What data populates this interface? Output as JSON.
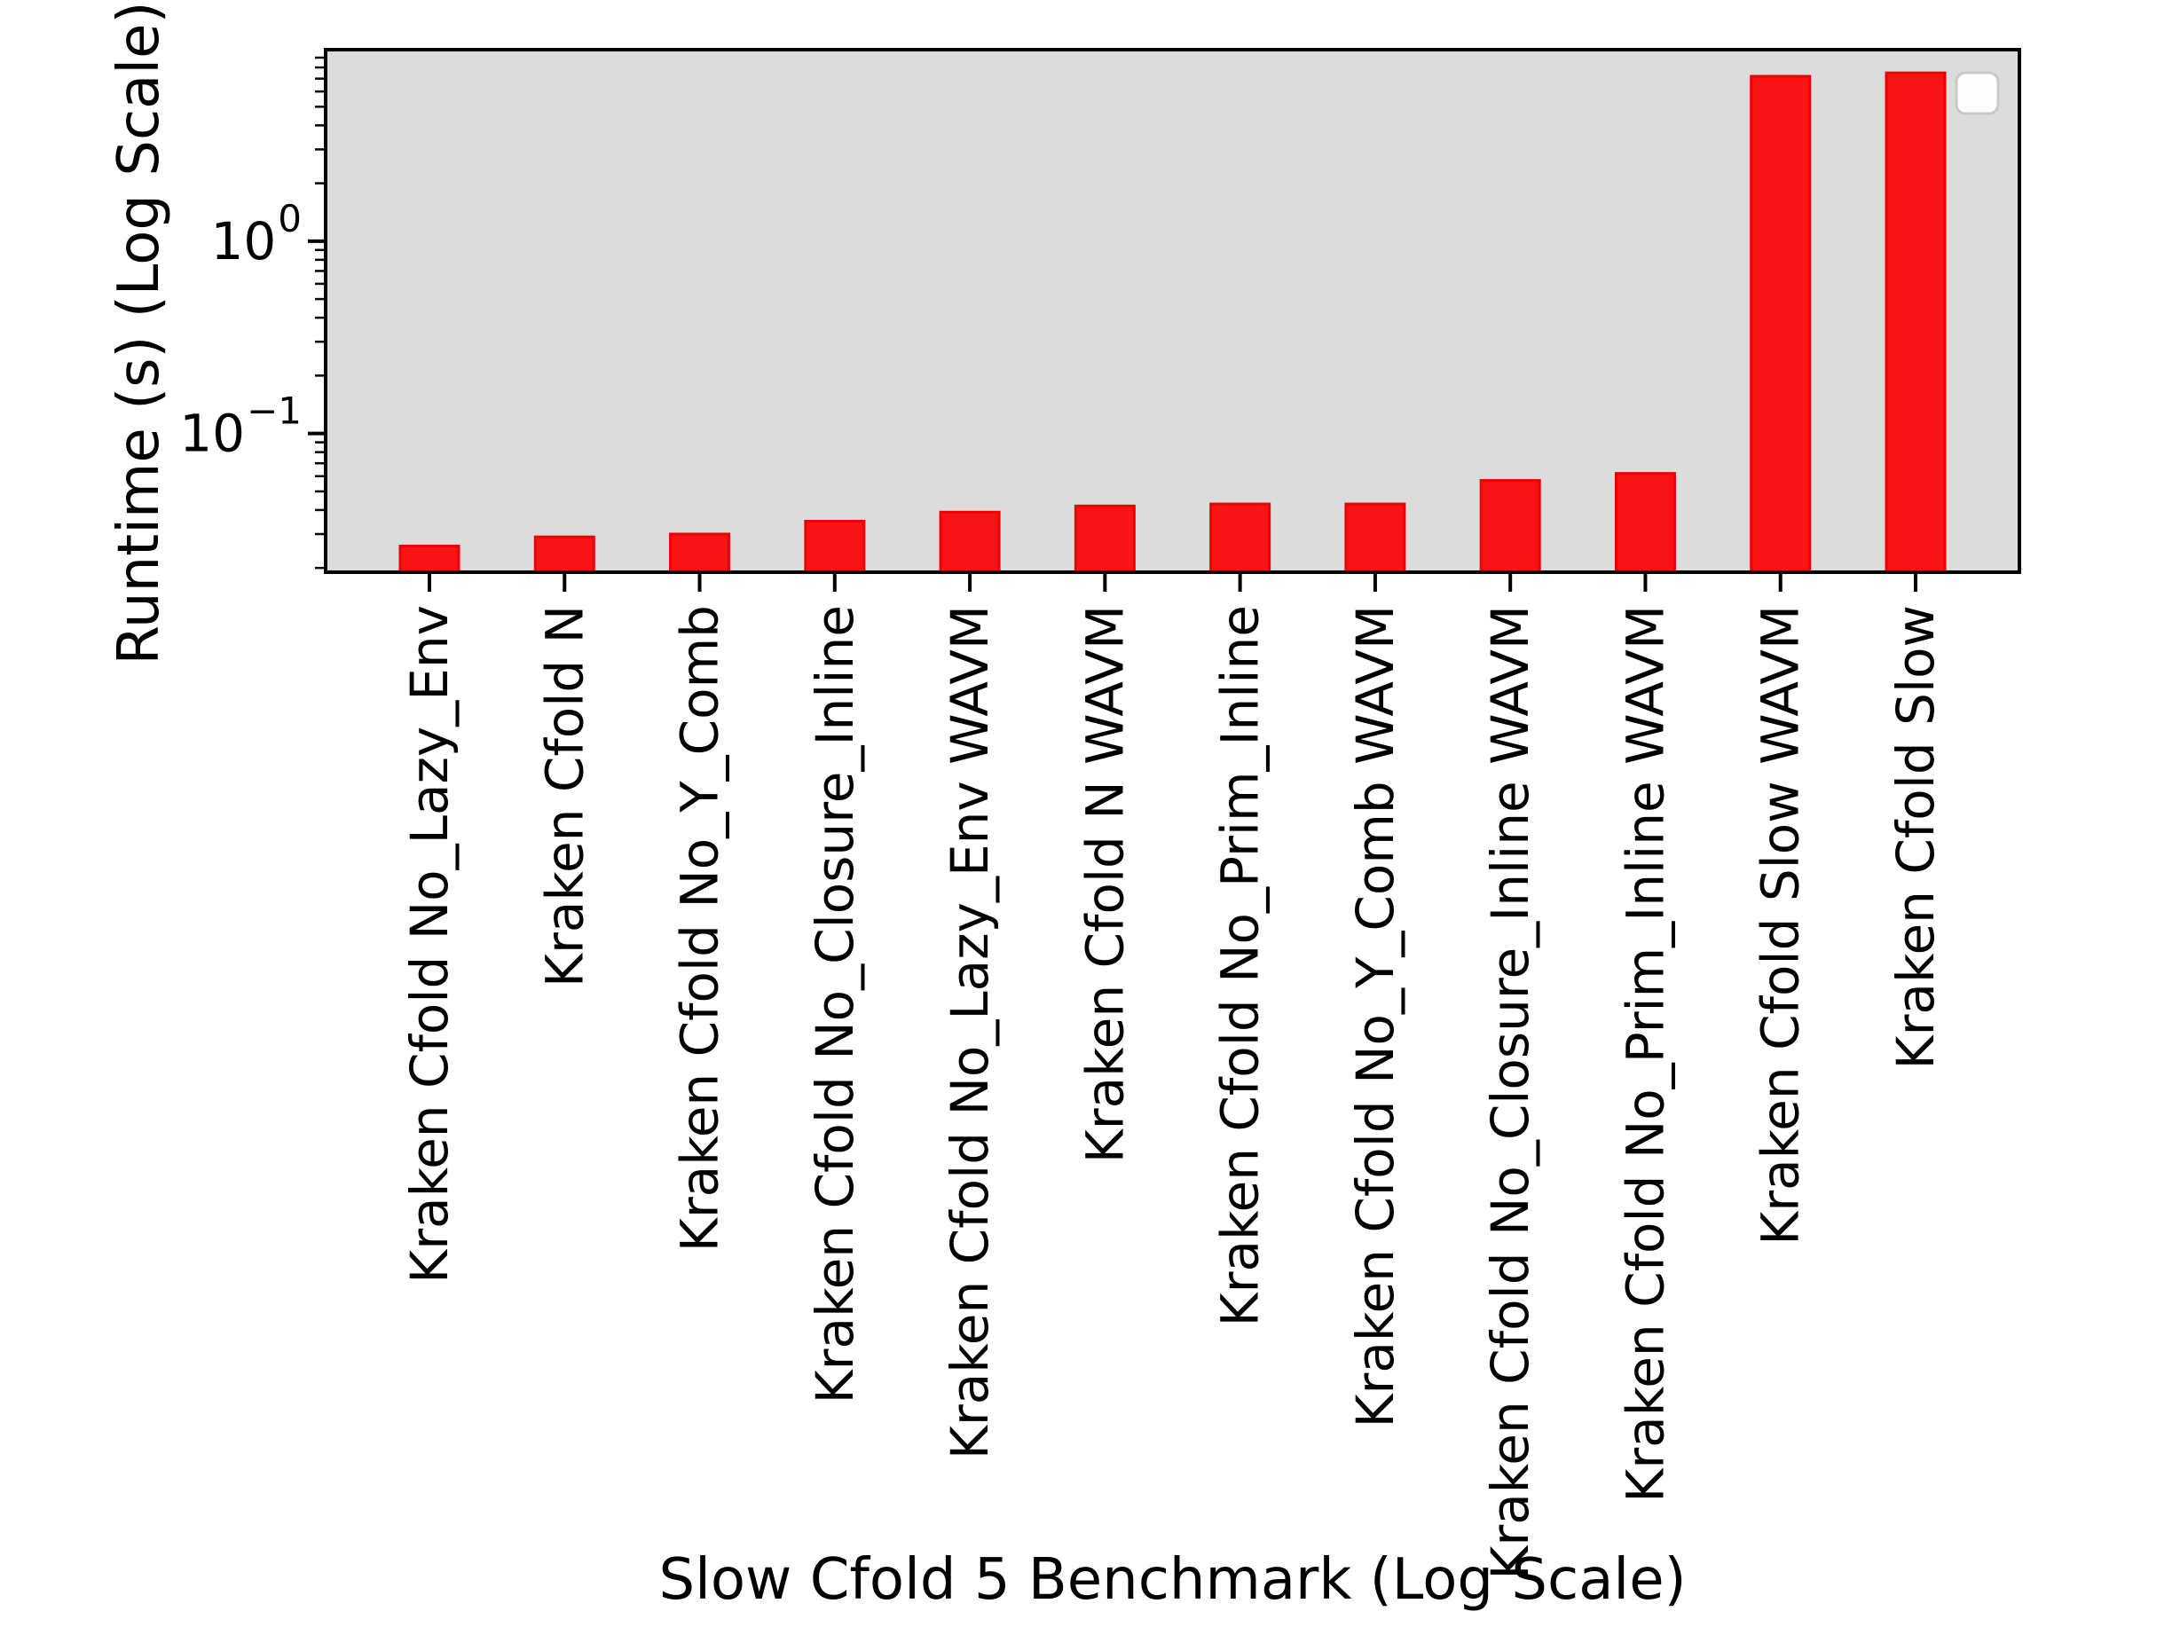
{
  "figure": {
    "background": "#ffffff"
  },
  "chart_data": {
    "type": "bar",
    "title": "",
    "xlabel": "Slow Cfold 5 Benchmark (Log Scale)",
    "ylabel": "Runtime (s) (Log Scale)",
    "categories": [
      "Kraken Cfold No_Lazy_Env",
      "Kraken Cfold N",
      "Kraken Cfold No_Y_Comb",
      "Kraken Cfold No_Closure_Inline",
      "Kraken Cfold No_Lazy_Env WAVM",
      "Kraken Cfold N WAVM",
      "Kraken Cfold No_Prim_Inline",
      "Kraken Cfold No_Y_Comb WAVM",
      "Kraken Cfold No_Closure_Inline WAVM",
      "Kraken Cfold No_Prim_Inline WAVM",
      "Kraken Cfold Slow WAVM",
      "Kraken Cfold Slow"
    ],
    "values": [
      0.026,
      0.029,
      0.03,
      0.035,
      0.039,
      0.042,
      0.043,
      0.043,
      0.057,
      0.062,
      7.2,
      7.5
    ],
    "units": "s",
    "yscale": "log",
    "ylim": [
      0.019,
      9.9
    ],
    "y_major_tick_exponents": [
      0,
      -1
    ],
    "grid": false,
    "legend": {
      "visible": true,
      "entries": []
    },
    "colors": {
      "bar_fill": "#f81414",
      "bar_edge": "#ee0000",
      "plot_background": "#dcdcdc",
      "axis": "#000000",
      "text": "#000000",
      "legend_fill": "#fdfdfd",
      "legend_border": "#c9c9c9"
    }
  }
}
